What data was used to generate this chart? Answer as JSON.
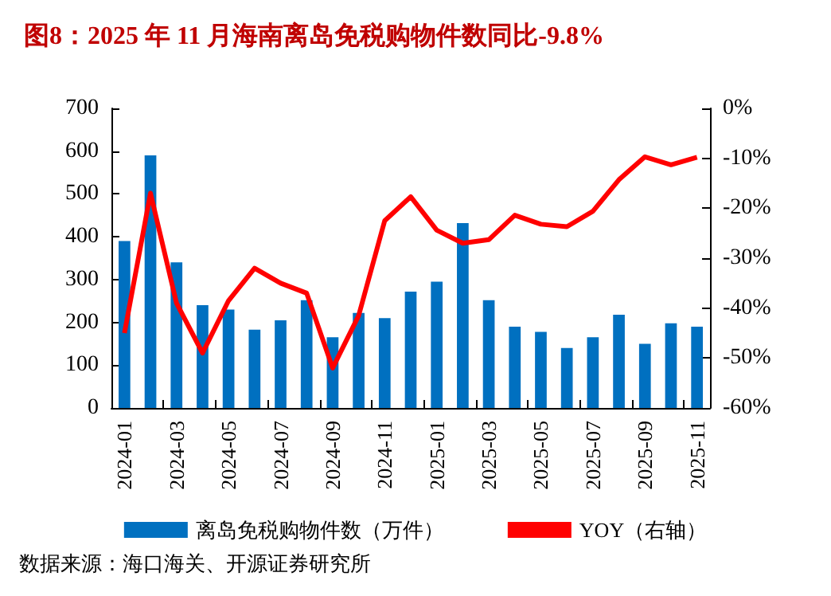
{
  "chart_data": {
    "type": "bar",
    "title": "图8：2025 年 11 月海南离岛免税购物件数同比-9.8%",
    "categories": [
      "2024-01",
      null,
      "2024-03",
      null,
      "2024-05",
      null,
      "2024-07",
      null,
      "2024-09",
      null,
      "2024-11",
      null,
      "2025-01",
      null,
      "2025-03",
      null,
      "2025-05",
      null,
      "2025-07",
      null,
      "2025-09",
      null,
      "2025-11"
    ],
    "series": [
      {
        "name": "离岛免税购物件数（万件）",
        "color": "#0070c0",
        "values": [
          390,
          590,
          340,
          240,
          230,
          183,
          205,
          252,
          165,
          222,
          210,
          272,
          295,
          432,
          252,
          190,
          178,
          140,
          165,
          218,
          150,
          198,
          190
        ]
      },
      {
        "name": "YOY（右轴）",
        "type": "line",
        "axis": "y2",
        "color": "#ff0000",
        "values": [
          -45,
          -17,
          -39,
          -49,
          -38.5,
          -32,
          -35,
          -37,
          -52,
          -41.5,
          -22.5,
          -17.7,
          -24.4,
          -27,
          -26.3,
          -21.4,
          -23.2,
          -23.7,
          -20.6,
          -14.3,
          -9.7,
          -11.3,
          -9.8
        ]
      }
    ],
    "ylim": [
      0,
      700
    ],
    "yticks": [
      0,
      100,
      200,
      300,
      400,
      500,
      600,
      700
    ],
    "y2lim": [
      -60,
      0
    ],
    "y2ticks": [
      {
        "value": -60,
        "label": "-60%"
      },
      {
        "value": -50,
        "label": "-50%"
      },
      {
        "value": -40,
        "label": "-40%"
      },
      {
        "value": -30,
        "label": "-30%"
      },
      {
        "value": -20,
        "label": "-20%"
      },
      {
        "value": -10,
        "label": "-10%"
      },
      {
        "value": 0,
        "label": "0%"
      }
    ],
    "grid": false,
    "legend": "bottom",
    "marker": "none",
    "line_style": "solid",
    "annotations": [
      "数据来源：海口海关、开源证券研究所"
    ]
  }
}
